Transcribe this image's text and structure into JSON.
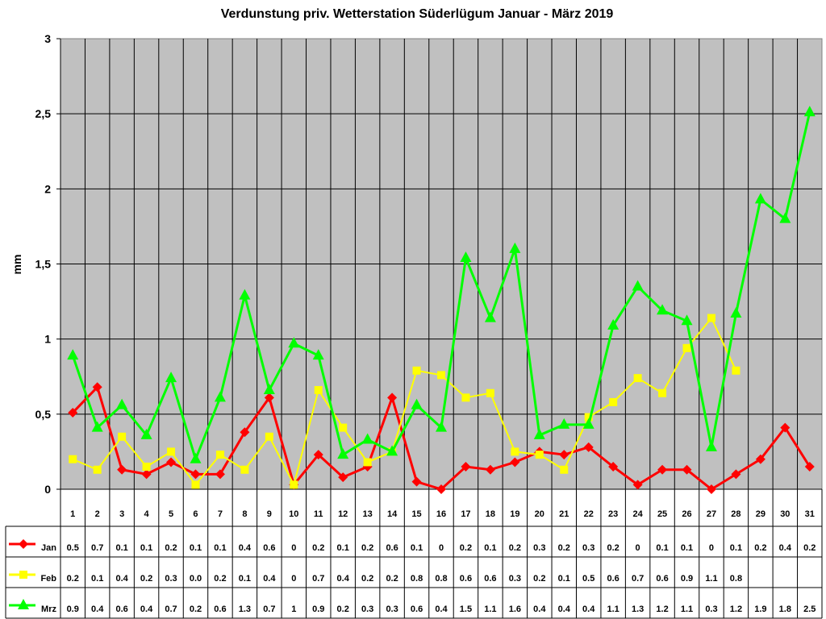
{
  "chart_data": {
    "type": "line",
    "title": "Verdunstung priv. Wetterstation Süderlügum Januar - März 2019",
    "xlabel": "",
    "ylabel": "mm",
    "ylim": [
      0,
      3
    ],
    "yticks": [
      "0",
      "0,5",
      "1",
      "1,5",
      "2",
      "2,5",
      "3"
    ],
    "grid": true,
    "legend_position": "data-table-left",
    "categories": [
      "1",
      "2",
      "3",
      "4",
      "5",
      "6",
      "7",
      "8",
      "9",
      "10",
      "11",
      "12",
      "13",
      "14",
      "15",
      "16",
      "17",
      "18",
      "19",
      "20",
      "21",
      "22",
      "23",
      "24",
      "25",
      "26",
      "27",
      "28",
      "29",
      "30",
      "31"
    ],
    "series": [
      {
        "name": "Jan",
        "color": "#ff0000",
        "marker": "diamond",
        "values": [
          0.51,
          0.68,
          0.13,
          0.1,
          0.18,
          0.1,
          0.1,
          0.38,
          0.61,
          0.03,
          0.23,
          0.08,
          0.15,
          0.61,
          0.05,
          0.0,
          0.15,
          0.13,
          0.18,
          0.25,
          0.23,
          0.28,
          0.15,
          0.03,
          0.13,
          0.13,
          0.0,
          0.1,
          0.2,
          0.41,
          0.15
        ],
        "table_values": [
          "0.5",
          "0.7",
          "0.1",
          "0.1",
          "0.2",
          "0.1",
          "0.1",
          "0.4",
          "0.6",
          "0",
          "0.2",
          "0.1",
          "0.2",
          "0.6",
          "0.1",
          "0",
          "0.2",
          "0.1",
          "0.2",
          "0.3",
          "0.2",
          "0.3",
          "0.2",
          "0",
          "0.1",
          "0.1",
          "0",
          "0.1",
          "0.2",
          "0.4",
          "0.2"
        ]
      },
      {
        "name": "Feb",
        "color": "#ffff00",
        "marker": "square",
        "values": [
          0.2,
          0.13,
          0.35,
          0.15,
          0.25,
          0.03,
          0.23,
          0.13,
          0.35,
          0.03,
          0.66,
          0.41,
          0.18,
          0.25,
          0.79,
          0.76,
          0.61,
          0.64,
          0.25,
          0.23,
          0.13,
          0.48,
          0.58,
          0.74,
          0.64,
          0.94,
          1.14,
          0.79,
          null,
          null,
          null
        ],
        "table_values": [
          "0.2",
          "0.1",
          "0.4",
          "0.2",
          "0.3",
          "0.0",
          "0.2",
          "0.1",
          "0.4",
          "0",
          "0.7",
          "0.4",
          "0.2",
          "0.2",
          "0.8",
          "0.8",
          "0.6",
          "0.6",
          "0.3",
          "0.2",
          "0.1",
          "0.5",
          "0.6",
          "0.7",
          "0.6",
          "0.9",
          "1.1",
          "0.8",
          "",
          "",
          ""
        ]
      },
      {
        "name": "Mrz",
        "color": "#00ff00",
        "marker": "triangle",
        "values": [
          0.89,
          0.41,
          0.56,
          0.36,
          0.74,
          0.2,
          0.61,
          1.29,
          0.66,
          0.97,
          0.89,
          0.23,
          0.33,
          0.25,
          0.56,
          0.41,
          1.54,
          1.14,
          1.6,
          0.36,
          0.43,
          0.43,
          1.09,
          1.35,
          1.19,
          1.12,
          0.28,
          1.17,
          1.93,
          1.8,
          2.51
        ],
        "table_values": [
          "0.9",
          "0.4",
          "0.6",
          "0.4",
          "0.7",
          "0.2",
          "0.6",
          "1.3",
          "0.7",
          "1",
          "0.9",
          "0.2",
          "0.3",
          "0.3",
          "0.6",
          "0.4",
          "1.5",
          "1.1",
          "1.6",
          "0.4",
          "0.4",
          "0.4",
          "1.1",
          "1.3",
          "1.2",
          "1.1",
          "0.3",
          "1.2",
          "1.9",
          "1.8",
          "2.5"
        ]
      }
    ]
  },
  "style": {
    "plot_background": "#c0c0c0",
    "grid_color": "#000000",
    "border_color": "#808080"
  }
}
